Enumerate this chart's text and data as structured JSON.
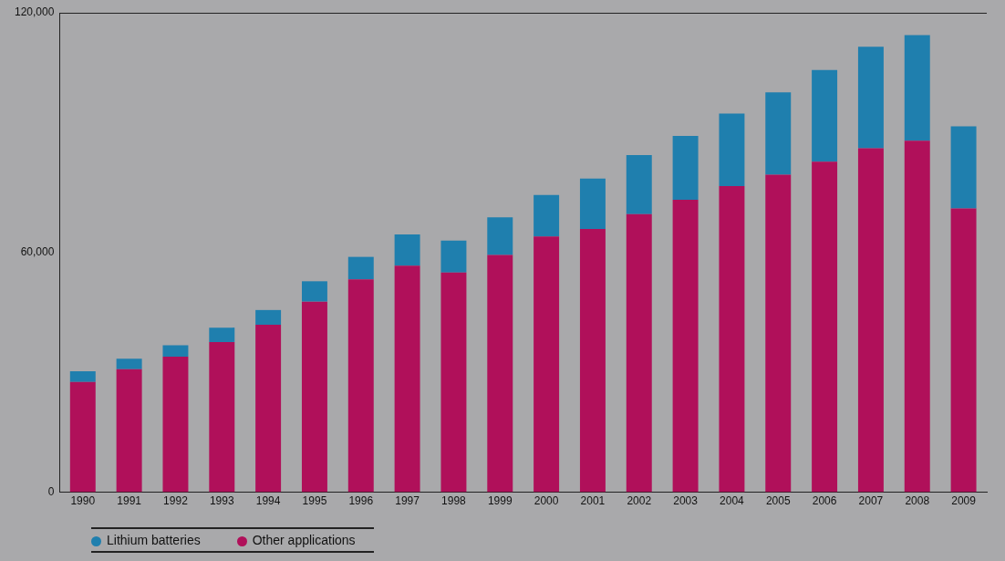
{
  "chart_data": {
    "type": "bar",
    "stacked": true,
    "categories": [
      "1990",
      "1991",
      "1992",
      "1993",
      "1994",
      "1995",
      "1996",
      "1997",
      "1998",
      "1999",
      "2000",
      "2001",
      "2002",
      "2003",
      "2004",
      "2005",
      "2006",
      "2007",
      "2008",
      "2009"
    ],
    "series": [
      {
        "name": "Other applications",
        "color": "#b0105a",
        "values": [
          27600,
          30800,
          33900,
          37600,
          41900,
          47700,
          53300,
          56700,
          55000,
          59400,
          64000,
          65900,
          69600,
          73200,
          76600,
          79500,
          82700,
          86100,
          88000,
          71000
        ]
      },
      {
        "name": "Lithium batteries",
        "color": "#1f7fae",
        "values": [
          2700,
          2600,
          2900,
          3600,
          3700,
          5100,
          5600,
          7800,
          8000,
          9400,
          10400,
          12600,
          14800,
          16000,
          18200,
          20600,
          23000,
          25400,
          26400,
          20600
        ]
      }
    ],
    "ylim": [
      0,
      120000
    ],
    "yticks": [
      0,
      {
        "value": 60000,
        "label": "60,000"
      },
      {
        "value": 120000,
        "label": "120,000"
      }
    ],
    "grid": false,
    "legend": "bottom left"
  }
}
